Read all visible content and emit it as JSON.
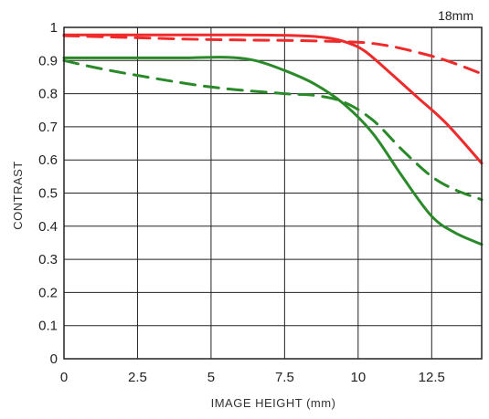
{
  "chart_data": {
    "type": "line",
    "subtitle": "18mm",
    "xlabel": "IMAGE HEIGHT (mm)",
    "ylabel": "CONTRAST",
    "xlim": [
      0,
      14.2
    ],
    "ylim": [
      0,
      1
    ],
    "x_ticks": [
      "0",
      "2.5",
      "5",
      "7.5",
      "10",
      "12.5"
    ],
    "x_tick_values": [
      0,
      2.5,
      5,
      7.5,
      10,
      12.5
    ],
    "y_ticks": [
      "0",
      "0.1",
      "0.2",
      "0.3",
      "0.4",
      "0.5",
      "0.6",
      "0.7",
      "0.8",
      "0.9",
      "1"
    ],
    "y_tick_values": [
      0,
      0.1,
      0.2,
      0.3,
      0.4,
      0.5,
      0.6,
      0.7,
      0.8,
      0.9,
      1
    ],
    "grid": true,
    "series": [
      {
        "color": "#ee2a2a",
        "style": "solid",
        "x": [
          0,
          2,
          4,
          6,
          8,
          9,
          9.6,
          10.2,
          11,
          12,
          13,
          14.2
        ],
        "y": [
          0.977,
          0.977,
          0.977,
          0.977,
          0.975,
          0.968,
          0.955,
          0.93,
          0.87,
          0.79,
          0.71,
          0.59
        ]
      },
      {
        "color": "#ee2a2a",
        "style": "dashed",
        "x": [
          0,
          2,
          4,
          6,
          8,
          10,
          11,
          12,
          13,
          14.2
        ],
        "y": [
          0.975,
          0.97,
          0.965,
          0.962,
          0.96,
          0.955,
          0.945,
          0.925,
          0.9,
          0.86
        ]
      },
      {
        "color": "#2a8a2a",
        "style": "solid",
        "x": [
          0,
          2,
          4,
          5.5,
          6.5,
          7.5,
          8.5,
          9.5,
          10.5,
          11.5,
          12.5,
          13.3,
          14.2
        ],
        "y": [
          0.908,
          0.908,
          0.908,
          0.91,
          0.9,
          0.87,
          0.83,
          0.77,
          0.68,
          0.55,
          0.43,
          0.38,
          0.345
        ]
      },
      {
        "color": "#2a8a2a",
        "style": "dashed",
        "x": [
          0,
          1,
          2.5,
          5,
          7.5,
          8.5,
          9.5,
          10.5,
          11.5,
          12.5,
          13.3,
          14.2
        ],
        "y": [
          0.9,
          0.88,
          0.855,
          0.82,
          0.8,
          0.795,
          0.775,
          0.72,
          0.63,
          0.55,
          0.51,
          0.48
        ]
      }
    ]
  }
}
